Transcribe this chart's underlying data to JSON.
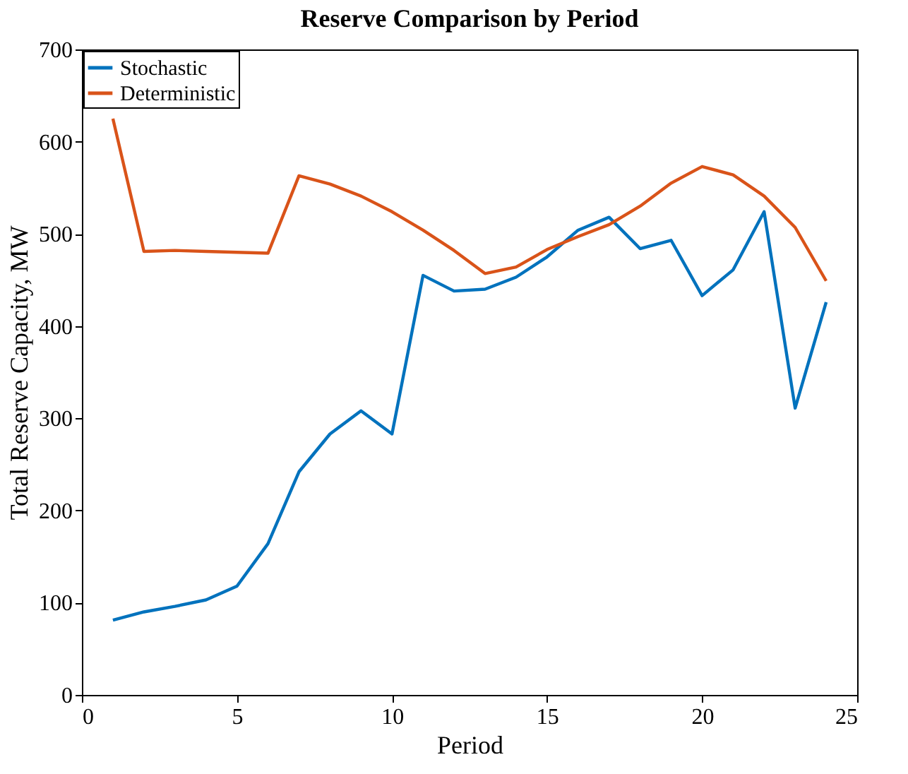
{
  "chart_data": {
    "type": "line",
    "title": "Reserve Comparison by Period",
    "xlabel": "Period",
    "ylabel": "Total Reserve Capacity, MW",
    "x": [
      1,
      2,
      3,
      4,
      5,
      6,
      7,
      8,
      9,
      10,
      11,
      12,
      13,
      14,
      15,
      16,
      17,
      18,
      19,
      20,
      21,
      22,
      23,
      24
    ],
    "series": [
      {
        "name": "Stochastic",
        "color": "#0072bd",
        "values": [
          81,
          90,
          96,
          103,
          118,
          164,
          242,
          283,
          308,
          283,
          455,
          438,
          440,
          453,
          475,
          504,
          518,
          484,
          493,
          433,
          461,
          524,
          311,
          426
        ]
      },
      {
        "name": "Deterministic",
        "color": "#d95319",
        "values": [
          625,
          481,
          482,
          481,
          480,
          479,
          563,
          554,
          541,
          524,
          504,
          482,
          457,
          464,
          483,
          497,
          510,
          530,
          555,
          573,
          564,
          541,
          507,
          449
        ]
      }
    ],
    "xlim": [
      0,
      25
    ],
    "xticks": [
      0,
      5,
      10,
      15,
      20,
      25
    ],
    "ylim": [
      0,
      700
    ],
    "yticks": [
      0,
      100,
      200,
      300,
      400,
      500,
      600,
      700
    ],
    "grid": false,
    "legend": "top left",
    "marker": "none",
    "line_style": "solid"
  }
}
